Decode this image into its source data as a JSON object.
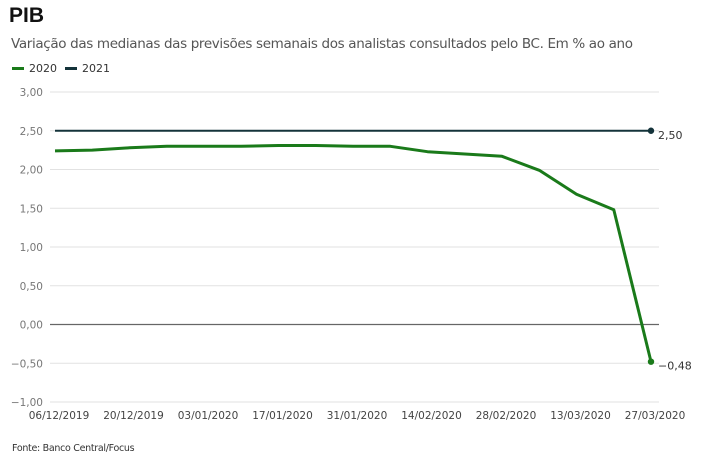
{
  "header": {
    "title": "PIB",
    "subtitle": "Variação das medianas das previsões semanais dos analistas consultados pelo BC. Em % ao ano"
  },
  "footer": {
    "source": "Fonte: Banco Central/Focus"
  },
  "chart_data": {
    "type": "line",
    "title": "PIB",
    "subtitle": "Variação das medianas das previsões semanais dos analistas consultados pelo BC. Em % ao ano",
    "xlabel": "",
    "ylabel": "",
    "ylim": [
      -1,
      3
    ],
    "yticks": [
      3,
      2.5,
      2,
      1.5,
      1,
      0.5,
      0,
      -0.5,
      -1
    ],
    "ytick_labels": [
      "3,00",
      "2,50",
      "2,00",
      "1,50",
      "1,00",
      "0,50",
      "0,00",
      "−0,50",
      "−1,00"
    ],
    "xtick_labels": [
      "06/12/2019",
      "20/12/2019",
      "03/01/2020",
      "17/01/2020",
      "31/01/2020",
      "14/02/2020",
      "28/02/2020",
      "13/03/2020",
      "27/03/2020"
    ],
    "x": [
      "06/12/2019",
      "13/12/2019",
      "20/12/2019",
      "27/12/2019",
      "03/01/2020",
      "10/01/2020",
      "17/01/2020",
      "24/01/2020",
      "31/01/2020",
      "07/02/2020",
      "14/02/2020",
      "21/02/2020",
      "28/02/2020",
      "06/03/2020",
      "13/03/2020",
      "20/03/2020",
      "27/03/2020"
    ],
    "grid": true,
    "legend_position": "top-left",
    "series": [
      {
        "name": "2020",
        "color": "#1a7a1a",
        "values": [
          2.24,
          2.25,
          2.28,
          2.3,
          2.3,
          2.3,
          2.31,
          2.31,
          2.3,
          2.3,
          2.23,
          2.2,
          2.17,
          1.99,
          1.68,
          1.48,
          -0.48
        ],
        "end_label": "−0,48"
      },
      {
        "name": "2021",
        "color": "#14333a",
        "values": [
          2.5,
          2.5,
          2.5,
          2.5,
          2.5,
          2.5,
          2.5,
          2.5,
          2.5,
          2.5,
          2.5,
          2.5,
          2.5,
          2.5,
          2.5,
          2.5,
          2.5
        ],
        "end_label": "2,50"
      }
    ]
  }
}
